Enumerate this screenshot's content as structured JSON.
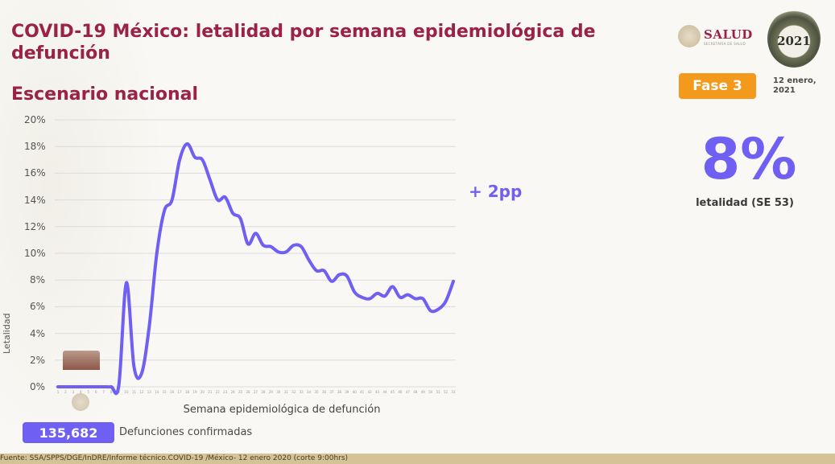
{
  "header": {
    "title": "COVID-19 México: letalidad por semana epidemiológica de defunción",
    "subtitle": "Escenario nacional"
  },
  "logos": {
    "salud_name": "SALUD",
    "salud_sub": "SECRETARÍA DE SALUD",
    "year_logo": "2021"
  },
  "status": {
    "phase_badge": "Fase 3",
    "date": "12 enero, 2021"
  },
  "kpi": {
    "value": "8%",
    "label": "letalidad (SE 53)"
  },
  "annotation": "+ 2pp",
  "deaths": {
    "count": "135,682",
    "label": "Defunciones confirmadas"
  },
  "footer": {
    "source": "Fuente: SSA/SPPS/DGE/InDRE/Informe técnico.COVID-19 /México- 12 enero 2020 (corte 9:00hrs)"
  },
  "colors": {
    "title": "#9b2247",
    "accent": "#6f5ff2",
    "phase": "#f39a1c",
    "footer_bg": "#d4c397"
  },
  "chart_data": {
    "type": "line",
    "title": "COVID-19 México: letalidad por semana epidemiológica de defunción",
    "subtitle": "Escenario nacional",
    "xlabel": "Semana epidemiológica de defunción",
    "ylabel": "Letalidad",
    "ylim": [
      0,
      20
    ],
    "yticks": [
      "0%",
      "2%",
      "4%",
      "6%",
      "8%",
      "10%",
      "12%",
      "14%",
      "16%",
      "18%",
      "20%"
    ],
    "grid": true,
    "legend": "none",
    "annotation": "+ 2pp",
    "x": [
      1,
      2,
      3,
      4,
      5,
      6,
      7,
      8,
      9,
      10,
      11,
      12,
      13,
      14,
      15,
      16,
      17,
      18,
      19,
      20,
      21,
      22,
      23,
      24,
      25,
      26,
      27,
      28,
      29,
      30,
      31,
      32,
      33,
      34,
      35,
      36,
      37,
      38,
      39,
      40,
      41,
      42,
      43,
      44,
      45,
      46,
      47,
      48,
      49,
      50,
      51,
      52,
      53
    ],
    "series": [
      {
        "name": "Letalidad (%)",
        "values": [
          0,
          0,
          0,
          0,
          0,
          0,
          0,
          0,
          0.1,
          7.8,
          1.5,
          1.0,
          4.5,
          10.0,
          13.2,
          14.0,
          17.0,
          18.2,
          17.2,
          17.0,
          15.5,
          14.0,
          14.2,
          13.0,
          12.6,
          10.7,
          11.5,
          10.6,
          10.5,
          10.1,
          10.1,
          10.6,
          10.5,
          9.5,
          8.7,
          8.7,
          7.9,
          8.4,
          8.3,
          7.1,
          6.7,
          6.6,
          7.0,
          6.8,
          7.5,
          6.7,
          6.9,
          6.6,
          6.6,
          5.7,
          5.8,
          6.4,
          7.9
        ]
      }
    ]
  }
}
